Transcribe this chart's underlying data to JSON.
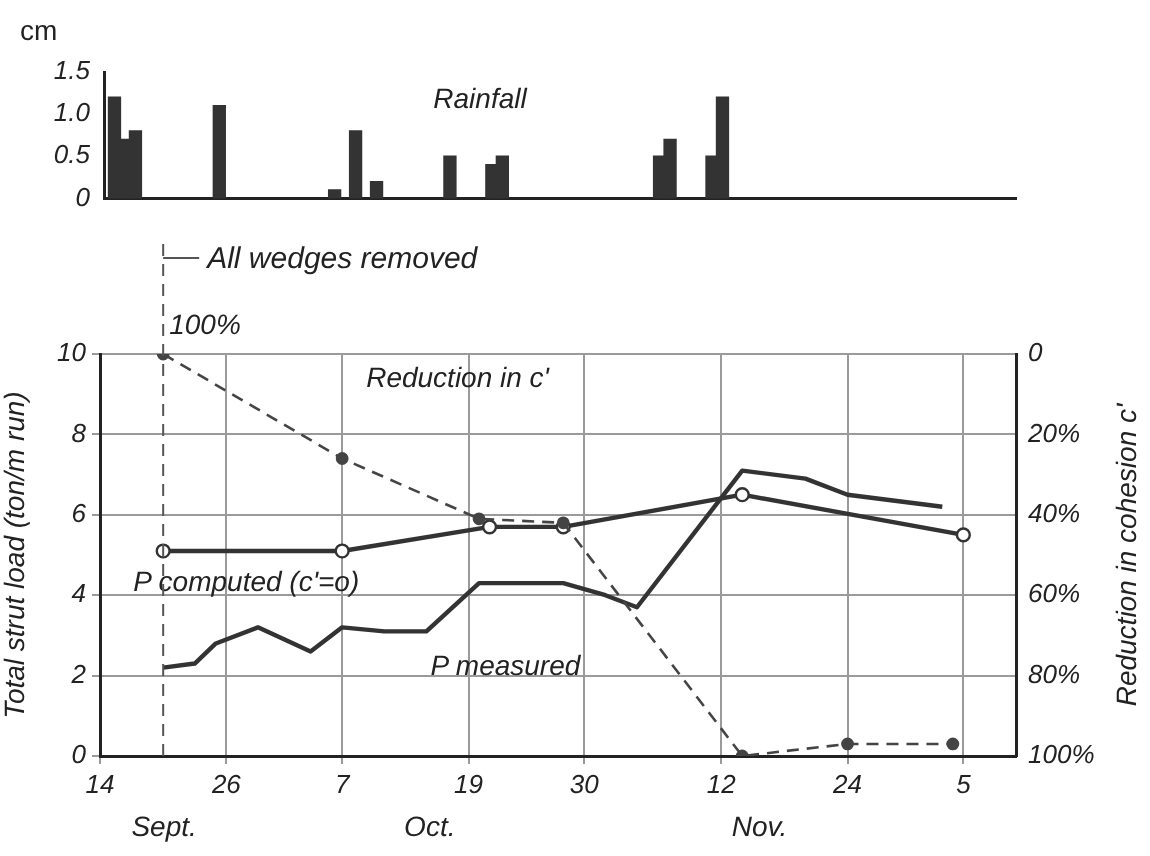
{
  "chart_data": [
    {
      "type": "bar",
      "ylabel": "cm",
      "annotations": [
        "Rainfall"
      ],
      "x": [
        "--09-15",
        "--09-16",
        "--09-17",
        "--09-25",
        "--10-06",
        "--10-08",
        "--10-10",
        "--10-17",
        "--10-21",
        "--10-22",
        "--11-06",
        "--11-07",
        "--11-11",
        "--11-12"
      ],
      "values": [
        1.2,
        0.7,
        0.8,
        1.1,
        0.1,
        0.8,
        0.2,
        0.5,
        0.4,
        0.5,
        0.5,
        0.7,
        0.5,
        1.2
      ],
      "color": "#333333",
      "xlim": [
        "--09-14",
        "--12-10"
      ],
      "ylim": [
        0,
        1.5
      ],
      "yticks": [
        0,
        0.5,
        {
          "value": 1,
          "label": "1.0"
        },
        1.5
      ],
      "tick_labels": "y"
    },
    {
      "type": "line",
      "ylabel": "Total strut load (ton/m run)",
      "y2label": "Reduction in cohesion c'",
      "annotations": [
        {
          "text": "100%",
          "x": "--09-20",
          "y": 10
        },
        "Sept.",
        "Oct.",
        "Nov."
      ],
      "series": [
        {
          "name": "P computed (c'=o)",
          "color": "#333333",
          "marker": "circle",
          "line_style": "solid",
          "x": [
            "--09-20",
            "--10-07",
            "--10-21",
            "--10-28",
            "--11-14",
            "--12-05"
          ],
          "values": [
            5.1,
            5.1,
            5.7,
            5.7,
            6.5,
            5.5
          ]
        },
        {
          "name": "P measured",
          "color": "#333333",
          "marker": "none",
          "line_style": "solid",
          "x": [
            "--09-20",
            "--09-23",
            "--09-25",
            "--09-29",
            "--10-04",
            "--10-07",
            "--10-11",
            "--10-15",
            "--10-20",
            "--10-28",
            "--11-01",
            "--11-04",
            "--11-14",
            "--11-20",
            "--11-24",
            "--12-03"
          ],
          "values": [
            2.2,
            2.3,
            2.8,
            3.2,
            2.6,
            3.2,
            3.1,
            3.1,
            4.3,
            4.3,
            4.0,
            3.7,
            7.1,
            6.9,
            6.5,
            6.2
          ]
        },
        {
          "name": "Reduction in c'",
          "color": "#444444",
          "marker": "circle",
          "line_style": "dashed",
          "axis": "y2",
          "x": [
            "--09-20",
            "--10-07",
            "--10-20",
            "--10-28",
            "--11-14",
            "--11-24",
            "--12-04"
          ],
          "values": [
            0,
            26,
            41,
            42,
            100,
            97,
            97
          ]
        }
      ],
      "ref_lines": [
        {
          "axis": "x",
          "value": "--09-20",
          "label": "All wedges removed",
          "line_style": "dashed",
          "color": "#555555"
        }
      ],
      "xlim": [
        "--09-14",
        "--12-10"
      ],
      "xticks": [
        {
          "value": "--09-14",
          "label": "14"
        },
        {
          "value": "--09-26",
          "label": "26"
        },
        {
          "value": "--10-07",
          "label": "7"
        },
        {
          "value": "--10-19",
          "label": "19"
        },
        {
          "value": "--10-30",
          "label": "30"
        },
        {
          "value": "--11-12",
          "label": "12"
        },
        {
          "value": "--11-24",
          "label": "24"
        },
        {
          "value": "--12-05",
          "label": "5"
        }
      ],
      "ylim": [
        0,
        10
      ],
      "yticks": [
        0,
        2,
        4,
        6,
        8,
        10
      ],
      "y2lim": [
        100,
        0
      ],
      "y2ticks": [
        {
          "value": 0,
          "label": "0"
        },
        {
          "value": 20,
          "label": "20%"
        },
        {
          "value": 40,
          "label": "40%"
        },
        {
          "value": 60,
          "label": "60%"
        },
        {
          "value": 80,
          "label": "80%"
        },
        {
          "value": 100,
          "label": "100%"
        }
      ],
      "grid": true,
      "legend": false
    }
  ]
}
